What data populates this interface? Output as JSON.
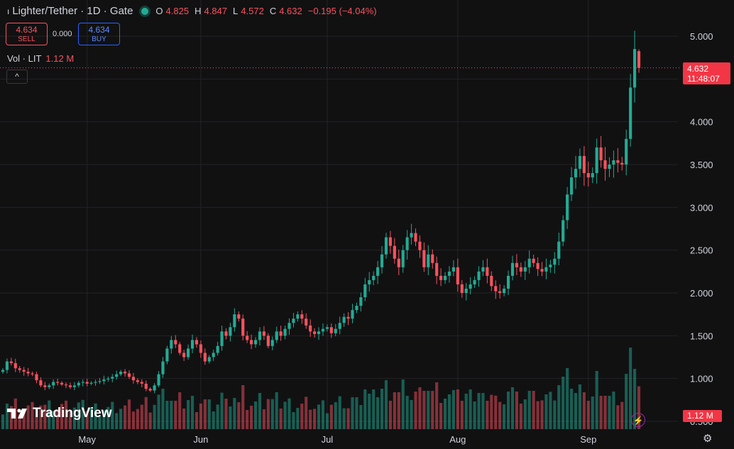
{
  "header": {
    "pair_title": "Lighter/Tether · 1D · Gate",
    "open_label": "O",
    "open_value": "4.825",
    "high_label": "H",
    "high_value": "4.847",
    "low_label": "L",
    "low_value": "4.572",
    "close_label": "C",
    "close_value": "4.632",
    "change": "−0.195 (−4.04%)"
  },
  "trade": {
    "sell_price": "4.634",
    "sell_label": "SELL",
    "spread": "0.000",
    "buy_price": "4.634",
    "buy_label": "BUY"
  },
  "volume_legend": {
    "label": "Vol · LIT",
    "value": "1.12 M"
  },
  "collapse_glyph": "^",
  "current_price": {
    "price": "4.632",
    "countdown": "11:48:07"
  },
  "volume_tag": "1.12 M",
  "logo_text": "TradingView",
  "colors": {
    "up": "#22ab94",
    "down": "#f7525f",
    "background": "#111112",
    "accent": "#2962ff"
  },
  "icons": {
    "flash": "lightning-icon",
    "settings": "gear-icon"
  },
  "chart_data": {
    "type": "candlestick",
    "title": "Lighter/Tether · 1D · Gate",
    "y_ticks": [
      "5.000",
      "4.500",
      "4.000",
      "3.500",
      "3.000",
      "2.500",
      "2.000",
      "1.500",
      "1.000",
      "0.500"
    ],
    "x_ticks": [
      "May",
      "Jun",
      "Jul",
      "Aug",
      "Sep"
    ],
    "ylim": [
      0.45,
      5.3
    ],
    "grid": true,
    "close_series": [
      1.1,
      1.2,
      1.18,
      1.12,
      1.1,
      1.08,
      1.06,
      1.05,
      0.98,
      0.92,
      0.9,
      0.92,
      0.96,
      0.95,
      0.93,
      0.92,
      0.9,
      0.92,
      0.95,
      0.96,
      0.94,
      0.95,
      0.96,
      0.97,
      0.99,
      1.0,
      1.02,
      1.05,
      1.08,
      1.06,
      1.02,
      0.98,
      0.96,
      0.94,
      0.88,
      0.86,
      0.92,
      1.05,
      1.2,
      1.35,
      1.45,
      1.4,
      1.3,
      1.25,
      1.35,
      1.45,
      1.4,
      1.3,
      1.2,
      1.25,
      1.3,
      1.38,
      1.55,
      1.5,
      1.6,
      1.75,
      1.7,
      1.5,
      1.45,
      1.4,
      1.45,
      1.55,
      1.5,
      1.38,
      1.45,
      1.55,
      1.5,
      1.58,
      1.65,
      1.7,
      1.75,
      1.7,
      1.62,
      1.55,
      1.52,
      1.55,
      1.58,
      1.6,
      1.53,
      1.58,
      1.65,
      1.72,
      1.7,
      1.8,
      1.85,
      1.95,
      2.1,
      2.15,
      2.2,
      2.3,
      2.45,
      2.65,
      2.55,
      2.4,
      2.3,
      2.5,
      2.65,
      2.7,
      2.6,
      2.5,
      2.3,
      2.45,
      2.35,
      2.2,
      2.15,
      2.2,
      2.25,
      2.3,
      2.1,
      2.0,
      2.05,
      2.1,
      2.15,
      2.25,
      2.3,
      2.2,
      2.08,
      2.02,
      2.0,
      2.05,
      2.2,
      2.35,
      2.3,
      2.25,
      2.3,
      2.4,
      2.35,
      2.28,
      2.25,
      2.3,
      2.33,
      2.4,
      2.6,
      2.85,
      3.15,
      3.35,
      3.45,
      3.6,
      3.4,
      3.35,
      3.4,
      3.7,
      3.55,
      3.45,
      3.5,
      3.55,
      3.52,
      3.5,
      3.8,
      4.4,
      4.85,
      4.63
    ]
  }
}
